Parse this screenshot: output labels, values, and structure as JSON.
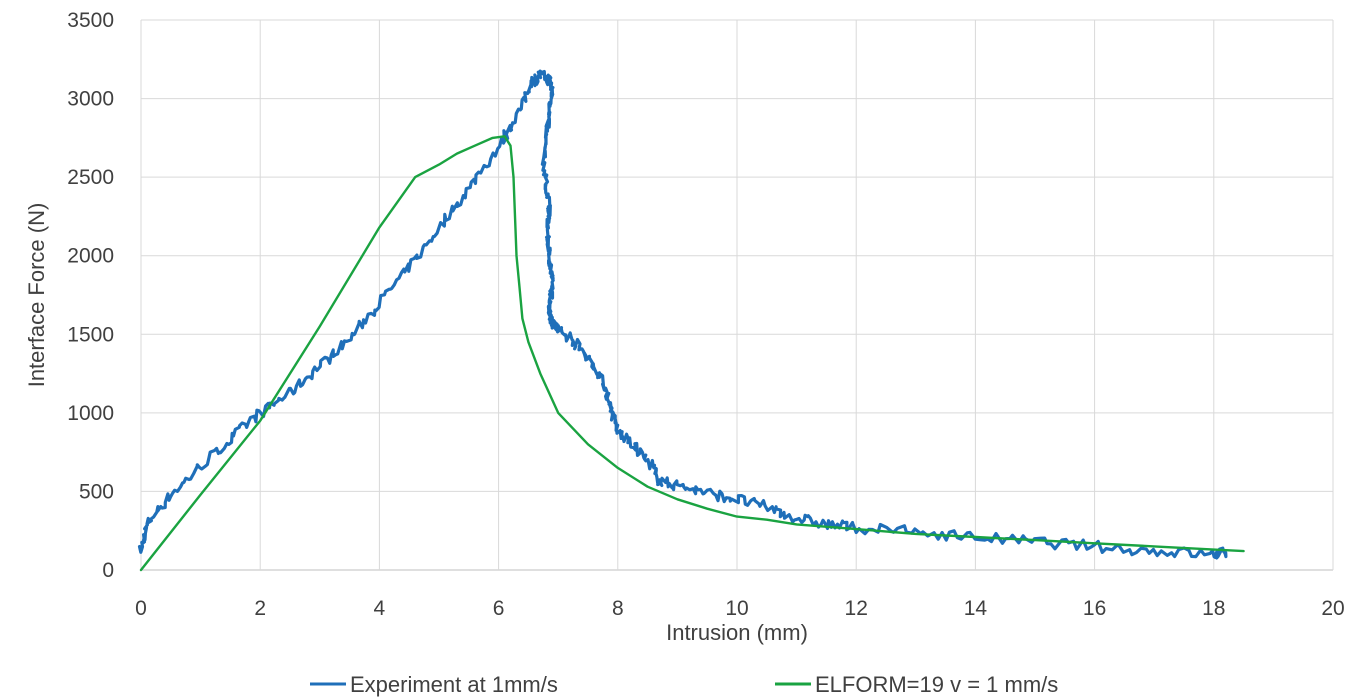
{
  "chart_data": {
    "type": "line",
    "title": "",
    "xlabel": "Intrusion (mm)",
    "ylabel": "Interface Force (N)",
    "xlim": [
      0,
      20
    ],
    "ylim": [
      0,
      3500
    ],
    "xticks": [
      0,
      2,
      4,
      6,
      8,
      10,
      12,
      14,
      16,
      18,
      20
    ],
    "yticks": [
      0,
      500,
      1000,
      1500,
      2000,
      2500,
      3000,
      3500
    ],
    "grid": true,
    "legend_position": "bottom",
    "series": [
      {
        "name": "Experiment at 1mm/s",
        "color": "#1f6fb9",
        "noisy": true,
        "x": [
          0.0,
          0.1,
          0.5,
          1.0,
          1.5,
          2.0,
          2.5,
          3.0,
          3.5,
          4.0,
          4.5,
          5.0,
          5.5,
          6.0,
          6.3,
          6.55,
          6.7,
          6.85,
          6.9,
          6.85,
          6.8,
          6.75,
          6.8,
          6.85,
          6.82,
          6.85,
          6.9,
          6.88,
          6.85,
          6.9,
          7.0,
          7.2,
          7.4,
          7.6,
          7.8,
          7.9,
          8.0,
          8.3,
          8.6,
          8.7,
          9.0,
          9.5,
          10.0,
          10.5,
          11.0,
          11.5,
          12.0,
          13.0,
          14.0,
          15.0,
          16.0,
          17.0,
          18.0,
          18.2
        ],
        "y": [
          120,
          300,
          480,
          660,
          830,
          1000,
          1130,
          1300,
          1470,
          1700,
          1930,
          2180,
          2430,
          2700,
          2880,
          3100,
          3150,
          3120,
          3050,
          2900,
          2800,
          2600,
          2450,
          2300,
          2150,
          2000,
          1850,
          1750,
          1650,
          1580,
          1530,
          1480,
          1400,
          1300,
          1150,
          1000,
          880,
          780,
          650,
          560,
          540,
          490,
          450,
          400,
          330,
          290,
          270,
          240,
          210,
          180,
          150,
          120,
          100,
          110
        ]
      },
      {
        "name": "ELFORM=19 v = 1 mm/s",
        "color": "#1aa341",
        "noisy": false,
        "x": [
          0.0,
          1.0,
          2.0,
          3.0,
          4.0,
          4.6,
          5.0,
          5.3,
          5.6,
          5.9,
          6.1,
          6.2,
          6.25,
          6.3,
          6.35,
          6.4,
          6.5,
          6.7,
          7.0,
          7.5,
          8.0,
          8.5,
          9.0,
          9.5,
          10.0,
          10.5,
          11.0,
          12.0,
          13.0,
          14.0,
          15.0,
          16.0,
          17.0,
          18.0,
          18.5
        ],
        "y": [
          0,
          480,
          950,
          1550,
          2180,
          2500,
          2580,
          2650,
          2700,
          2750,
          2760,
          2700,
          2500,
          2000,
          1800,
          1600,
          1450,
          1250,
          1000,
          800,
          650,
          530,
          450,
          390,
          340,
          320,
          290,
          260,
          230,
          210,
          190,
          170,
          150,
          130,
          120
        ]
      }
    ]
  }
}
